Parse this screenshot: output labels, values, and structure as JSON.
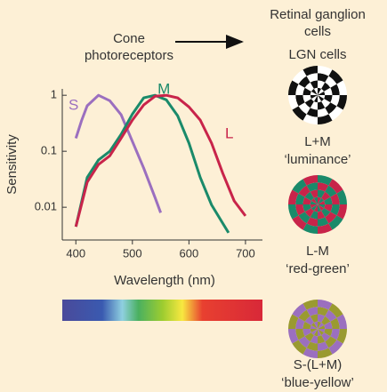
{
  "chart_data": {
    "type": "line",
    "x_label": "Wavelength (nm)",
    "y_label": "Sensitivity",
    "log_y": true,
    "xlim": [
      376,
      730
    ],
    "ylim": [
      0.0026,
      1.3
    ],
    "xticks": [
      400,
      500,
      600,
      700
    ],
    "yticks": [
      0.01,
      0.1,
      1
    ],
    "series": [
      {
        "name": "S",
        "color": "#9b6fbf",
        "x": [
          400,
          410,
          420,
          440,
          460,
          480,
          500,
          520,
          540,
          550
        ],
        "values": [
          0.17,
          0.35,
          0.65,
          1,
          0.8,
          0.45,
          0.15,
          0.05,
          0.015,
          0.008
        ]
      },
      {
        "name": "M",
        "color": "#1a8a6a",
        "x": [
          400,
          420,
          440,
          460,
          480,
          500,
          520,
          540,
          560,
          580,
          600,
          620,
          640,
          670
        ],
        "values": [
          0.0045,
          0.034,
          0.07,
          0.1,
          0.2,
          0.46,
          0.9,
          1,
          0.83,
          0.43,
          0.14,
          0.034,
          0.011,
          0.0035
        ]
      },
      {
        "name": "L",
        "color": "#c8244a",
        "x": [
          400,
          420,
          440,
          460,
          480,
          500,
          520,
          540,
          560,
          580,
          600,
          620,
          640,
          660,
          680,
          700
        ],
        "values": [
          0.0045,
          0.028,
          0.058,
          0.083,
          0.17,
          0.36,
          0.67,
          0.96,
          1,
          0.9,
          0.62,
          0.36,
          0.14,
          0.04,
          0.013,
          0.007
        ]
      }
    ]
  },
  "header": {
    "left": [
      "Cone",
      "photoreceptors"
    ],
    "right": [
      "Retinal ganglion",
      "cells"
    ],
    "right_sub": "LGN cells"
  },
  "pathways": [
    {
      "name": "L+M",
      "label": "‘luminance’"
    },
    {
      "name": "L-M",
      "label": "‘red-green’"
    },
    {
      "name": "S-(L+M)",
      "label": "‘blue-yellow’"
    }
  ]
}
